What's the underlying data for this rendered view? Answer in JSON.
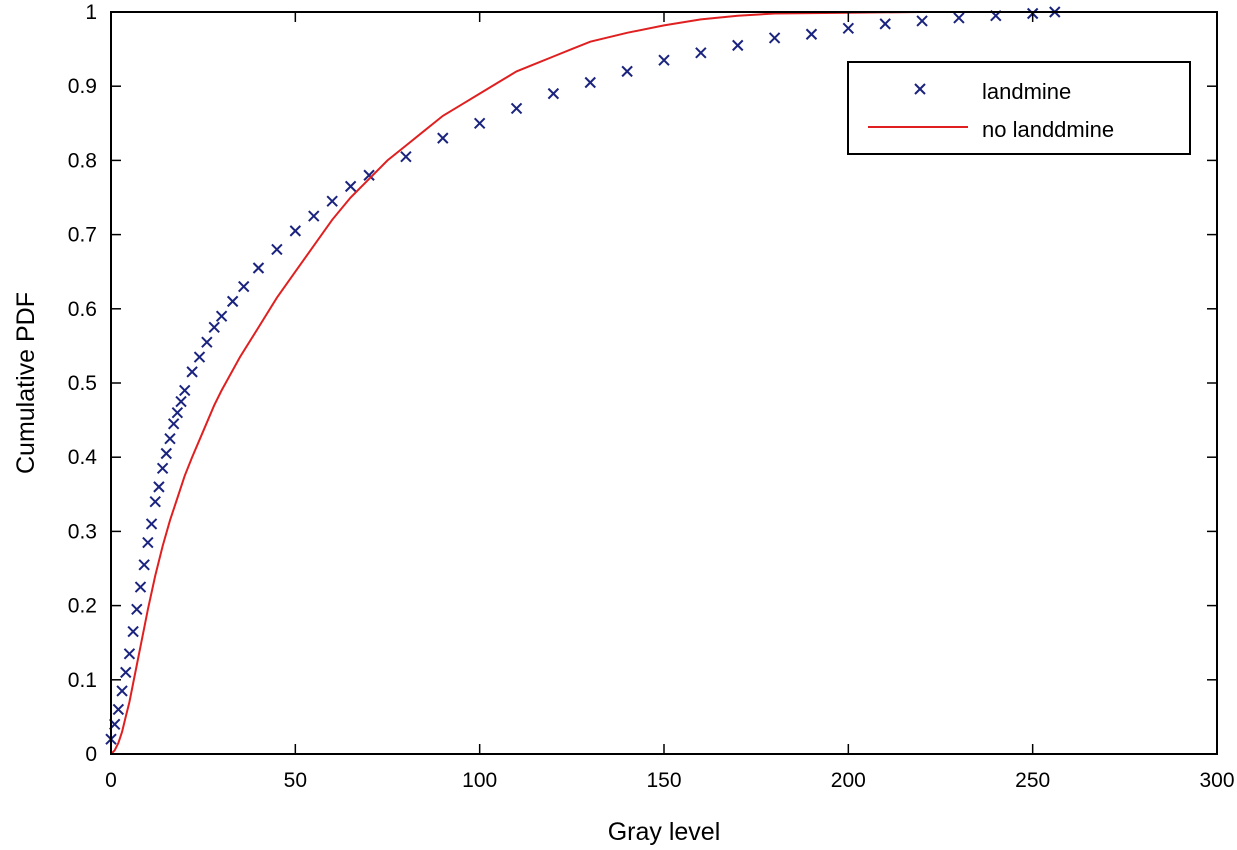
{
  "chart_data": {
    "type": "scatter",
    "title": "",
    "xlabel": "Gray level",
    "ylabel": "Cumulative PDF",
    "xlim": [
      0,
      300
    ],
    "ylim": [
      0,
      1
    ],
    "xticks": [
      "0",
      "50",
      "100",
      "150",
      "200",
      "250",
      "300"
    ],
    "yticks": [
      "0",
      "0.1",
      "0.2",
      "0.3",
      "0.4",
      "0.5",
      "0.6",
      "0.7",
      "0.8",
      "0.9",
      "1"
    ],
    "grid": false,
    "legend_position": "top-right",
    "series": [
      {
        "name": "landmine",
        "style": "markers",
        "marker": "x",
        "color": "#1a237e",
        "x": [
          0,
          1,
          2,
          3,
          4,
          5,
          6,
          7,
          8,
          9,
          10,
          11,
          12,
          13,
          14,
          15,
          16,
          17,
          18,
          19,
          20,
          22,
          24,
          26,
          28,
          30,
          33,
          36,
          40,
          45,
          50,
          55,
          60,
          65,
          70,
          80,
          90,
          100,
          110,
          120,
          130,
          140,
          150,
          160,
          170,
          180,
          190,
          200,
          210,
          220,
          230,
          240,
          250,
          256
        ],
        "y": [
          0.02,
          0.04,
          0.06,
          0.085,
          0.11,
          0.135,
          0.165,
          0.195,
          0.225,
          0.255,
          0.285,
          0.31,
          0.34,
          0.36,
          0.385,
          0.405,
          0.425,
          0.445,
          0.46,
          0.475,
          0.49,
          0.515,
          0.535,
          0.555,
          0.575,
          0.59,
          0.61,
          0.63,
          0.655,
          0.68,
          0.705,
          0.725,
          0.745,
          0.765,
          0.78,
          0.805,
          0.83,
          0.85,
          0.87,
          0.89,
          0.905,
          0.92,
          0.935,
          0.945,
          0.955,
          0.965,
          0.97,
          0.978,
          0.984,
          0.988,
          0.992,
          0.995,
          0.998,
          1.0
        ]
      },
      {
        "name": "no landdmine",
        "style": "line",
        "color": "#e02020",
        "x": [
          0,
          1,
          2,
          3,
          4,
          5,
          6,
          7,
          8,
          9,
          10,
          12,
          14,
          16,
          18,
          20,
          22,
          25,
          28,
          30,
          35,
          40,
          45,
          50,
          55,
          60,
          65,
          70,
          75,
          80,
          85,
          90,
          95,
          100,
          105,
          110,
          115,
          120,
          125,
          130,
          140,
          150,
          160,
          170,
          180,
          200,
          220,
          240,
          256
        ],
        "y": [
          0.0,
          0.005,
          0.015,
          0.03,
          0.05,
          0.07,
          0.095,
          0.12,
          0.145,
          0.17,
          0.195,
          0.24,
          0.28,
          0.315,
          0.345,
          0.375,
          0.4,
          0.435,
          0.47,
          0.49,
          0.535,
          0.575,
          0.615,
          0.65,
          0.685,
          0.72,
          0.75,
          0.775,
          0.8,
          0.82,
          0.84,
          0.86,
          0.875,
          0.89,
          0.905,
          0.92,
          0.93,
          0.94,
          0.95,
          0.96,
          0.972,
          0.982,
          0.99,
          0.995,
          0.998,
          0.999,
          1.0,
          1.0,
          1.0
        ]
      }
    ]
  }
}
